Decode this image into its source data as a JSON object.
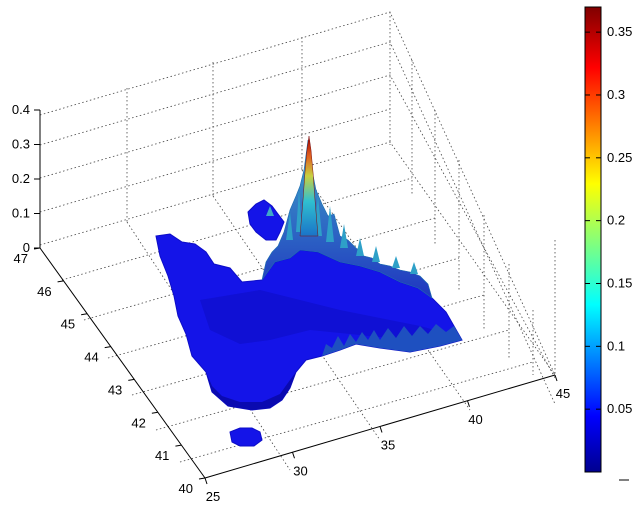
{
  "chart_data": {
    "type": "surface",
    "title": "",
    "xlabel": "",
    "ylabel": "",
    "zlabel": "",
    "colormap": "jet",
    "x_ticks": [
      "25",
      "30",
      "35",
      "40",
      "45"
    ],
    "y_ticks": [
      "40",
      "41",
      "42",
      "43",
      "44",
      "45",
      "46",
      "47"
    ],
    "z_ticks": [
      "0",
      "0.1",
      "0.2",
      "0.3",
      "0.4"
    ],
    "xlim": [
      25,
      45
    ],
    "ylim": [
      40,
      47
    ],
    "zlim": [
      0,
      0.4
    ],
    "peak": {
      "x": 32.5,
      "y": 45.2,
      "z": 0.37
    },
    "grid": true,
    "colorbar": {
      "range": [
        0,
        0.37
      ],
      "tick_labels": [
        "0.05",
        "0.1",
        "0.15",
        "0.2",
        "0.25",
        "0.3",
        "0.35"
      ],
      "tick_values": [
        0.05,
        0.1,
        0.15,
        0.2,
        0.25,
        0.3,
        0.35
      ]
    }
  }
}
